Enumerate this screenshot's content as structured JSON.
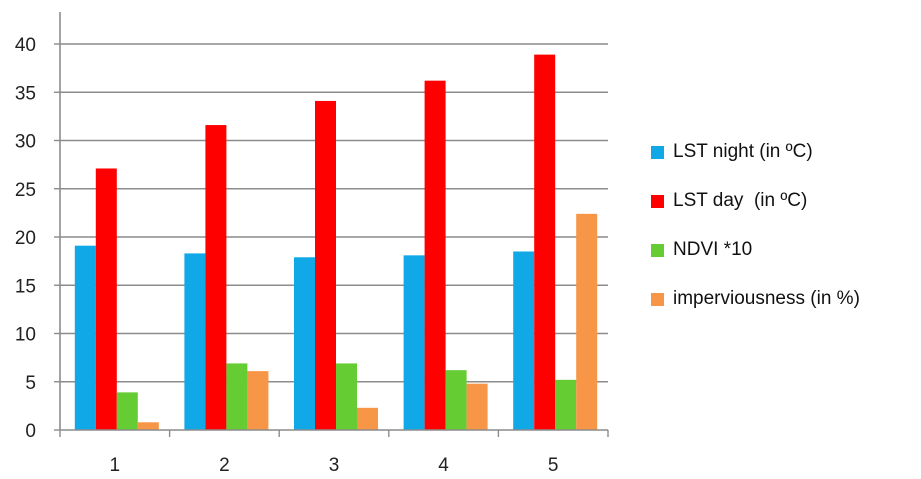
{
  "chart_data": {
    "type": "bar",
    "categories": [
      "1",
      "2",
      "3",
      "4",
      "5"
    ],
    "series": [
      {
        "name": "LST night (in ºC)",
        "color": "#11a8e8",
        "values": [
          19.1,
          18.3,
          17.9,
          18.1,
          18.5
        ]
      },
      {
        "name": "LST day  (in ºC)",
        "color": "#ff0000",
        "values": [
          27.1,
          31.6,
          34.1,
          36.2,
          38.9
        ]
      },
      {
        "name": "NDVI *10",
        "color": "#66cc33",
        "values": [
          3.9,
          6.9,
          6.9,
          6.2,
          5.2
        ]
      },
      {
        "name": "imperviousness (in %)",
        "color": "#f79646",
        "values": [
          0.8,
          6.1,
          2.3,
          4.8,
          22.4
        ]
      }
    ],
    "yticks": [
      "0",
      "5",
      "10",
      "15",
      "20",
      "25",
      "30",
      "35",
      "40"
    ],
    "ylim": [
      0,
      40
    ],
    "grid": true,
    "legend_position": "right"
  }
}
